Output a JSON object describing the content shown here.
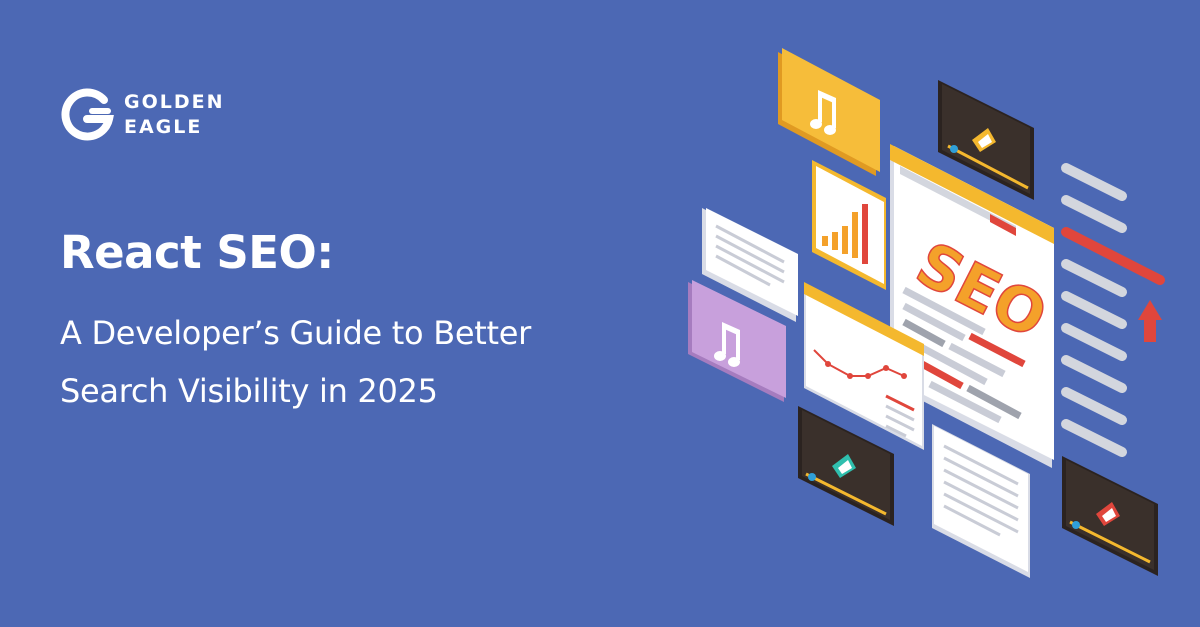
{
  "brand": {
    "line1": "GOLDEN",
    "line2": "EAGLE"
  },
  "headline": {
    "title": "React SEO:",
    "subtitle_line1": "A Developer’s Guide to Better",
    "subtitle_line2": "Search Visibility in 2025"
  },
  "illustration": {
    "center_label": "SEO",
    "icons": [
      "music-note-icon",
      "bar-chart-icon",
      "line-chart-icon",
      "video-player-icon",
      "arrow-up-icon"
    ]
  },
  "colors": {
    "background": "#4c68b4",
    "accent_orange": "#f4b82e",
    "accent_red": "#e0463c",
    "lavender": "#c8a0dc",
    "dark_panel": "#2b2320"
  }
}
